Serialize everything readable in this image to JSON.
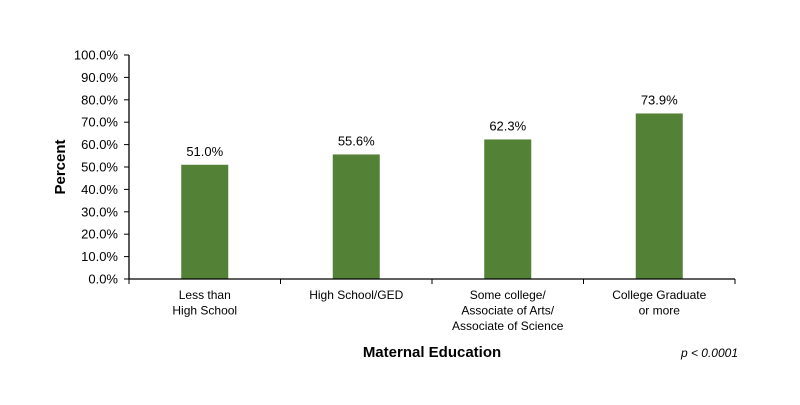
{
  "chart_data": {
    "type": "bar",
    "categories": [
      [
        "Less than",
        "High School"
      ],
      [
        "High School/GED"
      ],
      [
        "Some college/",
        "Associate of Arts/",
        "Associate of Science"
      ],
      [
        "College Graduate",
        "or more"
      ]
    ],
    "values": [
      51.0,
      55.6,
      62.3,
      73.9
    ],
    "data_labels": [
      "51.0%",
      "55.6%",
      "62.3%",
      "73.9%"
    ],
    "xlabel": "Maternal Education",
    "ylabel": "Percent",
    "ylim": [
      0,
      100
    ],
    "yticks": [
      0,
      10,
      20,
      30,
      40,
      50,
      60,
      70,
      80,
      90,
      100
    ],
    "ytick_labels": [
      "0.0%",
      "10.0%",
      "20.0%",
      "30.0%",
      "40.0%",
      "50.0%",
      "60.0%",
      "70.0%",
      "80.0%",
      "90.0%",
      "100.0%"
    ],
    "annotation": "p < 0.0001",
    "bar_color": "#538135",
    "grid": false,
    "legend": "none"
  }
}
